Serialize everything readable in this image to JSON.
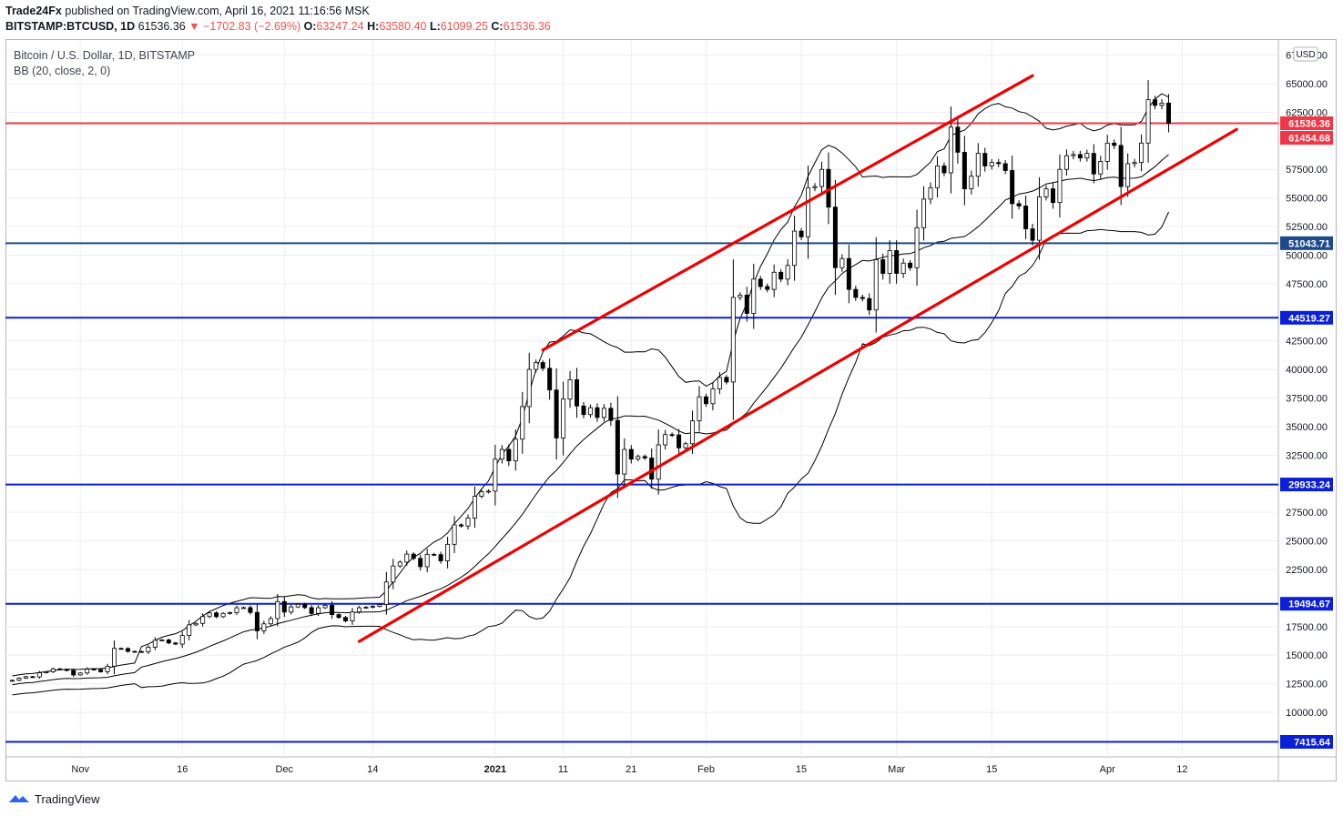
{
  "header": {
    "publisher": "Trade24Fx",
    "published_text": "published on TradingView.com, April 16, 2021 11:16:56 MSK",
    "symbol": "BITSTAMP:BTCUSD, 1D",
    "last": "61536.36",
    "change": "▼ −1702.83 (−2.69%)",
    "o_label": "O:",
    "o": "63247.24",
    "h_label": "H:",
    "h": "63580.40",
    "l_label": "L:",
    "l": "61099.25",
    "c_label": "C:",
    "c": "61536.36"
  },
  "legend": {
    "title": "Bitcoin / U.S. Dollar, 1D, BITSTAMP",
    "indicator": "BB (20, close, 2, 0)"
  },
  "footer": {
    "brand": "TradingView",
    "logo_icon": "tradingview-logo-icon"
  },
  "chart_data": {
    "type": "candlestick",
    "currency": "USD",
    "y_ticks": [
      "67500.00",
      "65000.00",
      "62500.00",
      "57500.00",
      "55000.00",
      "52500.00",
      "50000.00",
      "47500.00",
      "42500.00",
      "40000.00",
      "37500.00",
      "35000.00",
      "32500.00",
      "27500.00",
      "25000.00",
      "22500.00",
      "17500.00",
      "15000.00",
      "12500.00",
      "10000.00"
    ],
    "x_ticks": [
      "Nov",
      "16",
      "Dec",
      "14",
      "2021",
      "11",
      "21",
      "Feb",
      "15",
      "Mar",
      "15",
      "Apr",
      "12"
    ],
    "ylim": [
      6500,
      68500
    ],
    "xlim": [
      "2020-10-21",
      "2021-04-26"
    ],
    "colors": {
      "up": "#ffffff",
      "down": "#000000",
      "bb": "#000000",
      "trendline": "#f00000",
      "level": "#0a1fd6",
      "last_price": "#f23645"
    },
    "horizontal_levels": [
      {
        "label": "61536.36",
        "value": 61536.36,
        "color": "#f23645"
      },
      {
        "label": "61454.68",
        "value": 61454.68,
        "color": "#f23645"
      },
      {
        "label": "51043.71",
        "value": 51043.71,
        "color": "#1e4a8c"
      },
      {
        "label": "44519.27",
        "value": 44519.27,
        "color": "#0a1fd6"
      },
      {
        "label": "29933.24",
        "value": 29933.24,
        "color": "#0a1fd6"
      },
      {
        "label": "19494.67",
        "value": 19494.67,
        "color": "#0a1fd6"
      },
      {
        "label": "7415.64",
        "value": 7415.64,
        "color": "#0a1fd6"
      }
    ],
    "trendlines": [
      {
        "from": [
          "2021-01-08",
          41700
        ],
        "to": [
          "2021-03-21",
          65700
        ]
      },
      {
        "from": [
          "2020-12-12",
          16200
        ],
        "to": [
          "2021-04-20",
          61000
        ]
      }
    ],
    "closes": [
      12800,
      12990,
      13120,
      13100,
      13460,
      13550,
      13800,
      13760,
      13660,
      13270,
      13440,
      13780,
      13740,
      13550,
      14030,
      15590,
      15580,
      15330,
      15320,
      15290,
      15700,
      16300,
      16330,
      16070,
      15970,
      16720,
      17650,
      17780,
      18380,
      18700,
      18370,
      18650,
      18720,
      19150,
      19160,
      18740,
      17130,
      17740,
      18200,
      19690,
      18770,
      19220,
      19450,
      19160,
      18650,
      19150,
      19360,
      18550,
      18300,
      18000,
      18780,
      19150,
      19190,
      19270,
      19430,
      21400,
      22800,
      23140,
      23840,
      23470,
      22740,
      23820,
      23800,
      23250,
      24700,
      26400,
      26300,
      27000,
      28900,
      29300,
      29350,
      32150,
      33000,
      32000,
      33900,
      36750,
      40000,
      40600,
      40100,
      38200,
      34000,
      37400,
      39100,
      36800,
      36050,
      36650,
      35800,
      36600,
      35540,
      30850,
      33000,
      32150,
      32380,
      32250,
      30400,
      33400,
      34300,
      34270,
      33140,
      33500,
      35500,
      37600,
      37000,
      38300,
      39300,
      38900,
      46300,
      46500,
      44900,
      47900,
      47250,
      47000,
      48500,
      47900,
      49100,
      52100,
      51600,
      55900,
      56000,
      57500,
      54200,
      48900,
      49700,
      47000,
      46300,
      46200,
      45200,
      49600,
      48400,
      50400,
      48400,
      49300,
      48900,
      52400,
      54900,
      55900,
      57800,
      57200,
      61200,
      59000,
      55800,
      56900,
      58900,
      57800,
      58100,
      58000,
      57400,
      54500,
      54300,
      52300,
      51300,
      55100,
      55800,
      54600,
      57500,
      58700,
      58800,
      58500,
      58900,
      57100,
      58200,
      59800,
      59600,
      56000,
      58000,
      58100,
      59800,
      63600,
      63100,
      63300,
      61536
    ]
  }
}
